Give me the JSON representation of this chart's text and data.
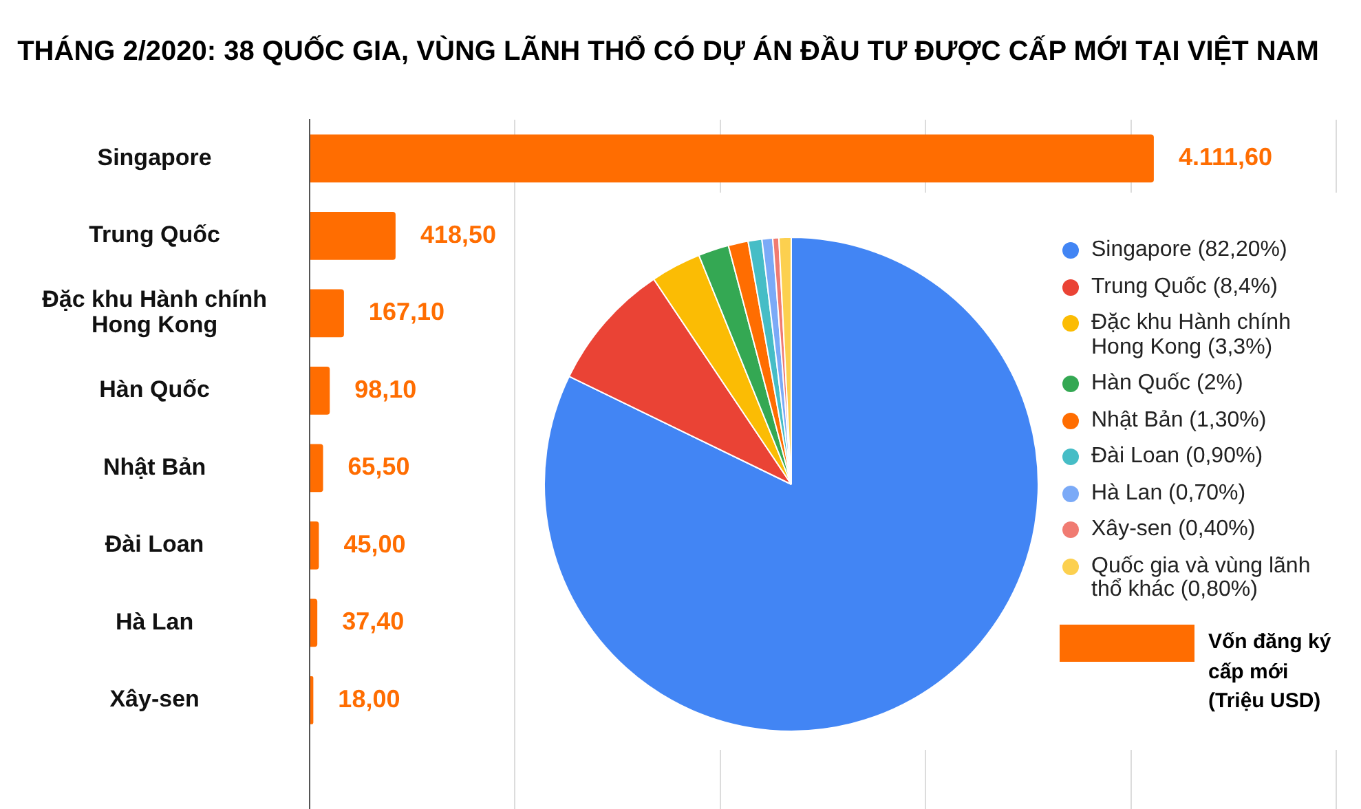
{
  "chart_data": [
    {
      "type": "bar",
      "title": "THÁNG 2/2020: 38 QUỐC GIA, VÙNG LÃNH THỔ CÓ DỰ ÁN ĐẦU TƯ ĐƯỢC CẤP MỚI TẠI VIỆT NAM",
      "orientation": "horizontal",
      "categories": [
        "Singapore",
        "Trung Quốc",
        "Đặc khu Hành chính Hong Kong",
        "Hàn Quốc",
        "Nhật Bản",
        "Đài Loan",
        "Hà Lan",
        "Xây-sen"
      ],
      "series": [
        {
          "name": "Vốn đăng ký cấp mới (Triệu USD)",
          "color": "#ff6d01",
          "values": [
            4111.6,
            418.5,
            167.1,
            98.1,
            65.5,
            45.0,
            37.4,
            18.0
          ],
          "value_labels": [
            "4.111,60",
            "418,50",
            "167,10",
            "98,10",
            "65,50",
            "45,00",
            "37,40",
            "18,00"
          ]
        }
      ],
      "xlim": [
        0,
        5000
      ],
      "xticks": [
        0,
        1000,
        2000,
        3000,
        4000,
        5000
      ],
      "grid": "x",
      "tick_labels": "y",
      "legend": "bottom right"
    },
    {
      "type": "pie",
      "categories": [
        "Singapore (82,20%)",
        "Trung Quốc (8,4%)",
        "Đặc khu Hành chính Hong Kong (3,3%)",
        "Hàn Quốc (2%)",
        "Nhật Bản (1,30%)",
        "Đài Loan (0,90%)",
        "Hà Lan (0,70%)",
        "Xây-sen (0,40%)",
        "Quốc gia và vùng lãnh thổ khác (0,80%)"
      ],
      "values": [
        82.2,
        8.4,
        3.3,
        2,
        1.3,
        0.9,
        0.7,
        0.4,
        0.8
      ],
      "colors": [
        "#4285f4",
        "#ea4335",
        "#fbbc04",
        "#34a853",
        "#ff6d01",
        "#46bdc6",
        "#7baaf7",
        "#f07b72",
        "#fcd04f"
      ],
      "legend": "right"
    }
  ]
}
